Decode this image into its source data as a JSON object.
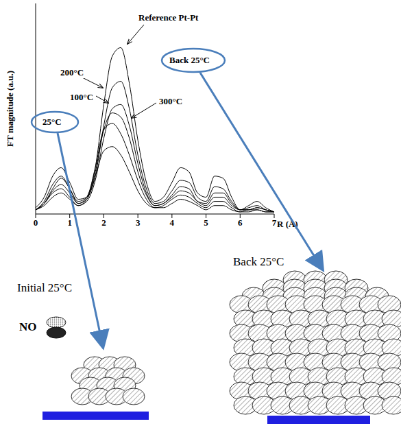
{
  "chart_data": {
    "type": "line",
    "x_label": "R (Å)",
    "y_label": "FT magnitude (a.u.)",
    "x": [
      0,
      0.25,
      0.5,
      0.75,
      1.0,
      1.25,
      1.5,
      1.75,
      2.0,
      2.25,
      2.5,
      2.75,
      3.0,
      3.25,
      3.5,
      3.75,
      4.0,
      4.25,
      4.5,
      4.75,
      5.0,
      5.25,
      5.5,
      5.75,
      6.0,
      6.25,
      6.5,
      6.75,
      7.0
    ],
    "xlim": [
      0,
      7
    ],
    "xticks": [
      0,
      1,
      2,
      3,
      4,
      5,
      6,
      7
    ],
    "ylim": [
      0,
      1
    ],
    "tick_labels": "x",
    "grid": false,
    "series": [
      {
        "name": "Reference Pt-Pt",
        "color": "#000000",
        "values": [
          0.02,
          0.05,
          0.12,
          0.17,
          0.12,
          0.05,
          0.08,
          0.22,
          0.52,
          0.75,
          0.79,
          0.62,
          0.35,
          0.15,
          0.06,
          0.08,
          0.15,
          0.22,
          0.2,
          0.1,
          0.08,
          0.18,
          0.17,
          0.08,
          0.02,
          0.04,
          0.06,
          0.03,
          0.01
        ]
      },
      {
        "name": "200°C",
        "color": "#000000",
        "values": [
          0.02,
          0.05,
          0.11,
          0.14,
          0.1,
          0.05,
          0.07,
          0.2,
          0.4,
          0.48,
          0.46,
          0.36,
          0.2,
          0.09,
          0.04,
          0.05,
          0.08,
          0.11,
          0.1,
          0.06,
          0.04,
          0.08,
          0.08,
          0.04,
          0.02,
          0.02,
          0.03,
          0.02,
          0.01
        ]
      },
      {
        "name": "Back 25°C",
        "color": "#000000",
        "values": [
          0.02,
          0.05,
          0.1,
          0.12,
          0.08,
          0.04,
          0.07,
          0.18,
          0.42,
          0.6,
          0.63,
          0.5,
          0.28,
          0.12,
          0.05,
          0.06,
          0.11,
          0.16,
          0.15,
          0.08,
          0.06,
          0.13,
          0.12,
          0.06,
          0.02,
          0.03,
          0.04,
          0.02,
          0.01
        ]
      },
      {
        "name": "100°C",
        "color": "#000000",
        "values": [
          0.02,
          0.06,
          0.14,
          0.18,
          0.12,
          0.06,
          0.08,
          0.22,
          0.4,
          0.43,
          0.38,
          0.28,
          0.16,
          0.07,
          0.03,
          0.04,
          0.07,
          0.09,
          0.08,
          0.05,
          0.03,
          0.06,
          0.06,
          0.03,
          0.01,
          0.02,
          0.02,
          0.01,
          0.01
        ]
      },
      {
        "name": "300°C",
        "color": "#000000",
        "values": [
          0.02,
          0.04,
          0.08,
          0.1,
          0.07,
          0.04,
          0.06,
          0.16,
          0.36,
          0.5,
          0.52,
          0.42,
          0.24,
          0.1,
          0.04,
          0.05,
          0.09,
          0.13,
          0.12,
          0.06,
          0.05,
          0.1,
          0.1,
          0.05,
          0.02,
          0.02,
          0.03,
          0.02,
          0.01
        ]
      },
      {
        "name": "25°C",
        "color": "#000000",
        "values": [
          0.03,
          0.08,
          0.18,
          0.22,
          0.15,
          0.07,
          0.08,
          0.18,
          0.3,
          0.32,
          0.28,
          0.2,
          0.11,
          0.05,
          0.03,
          0.03,
          0.05,
          0.07,
          0.06,
          0.04,
          0.02,
          0.04,
          0.04,
          0.02,
          0.01,
          0.01,
          0.02,
          0.01,
          0.01
        ]
      }
    ],
    "annotations": [
      "Initial 25°C",
      "Back 25°C",
      "NO"
    ]
  }
}
